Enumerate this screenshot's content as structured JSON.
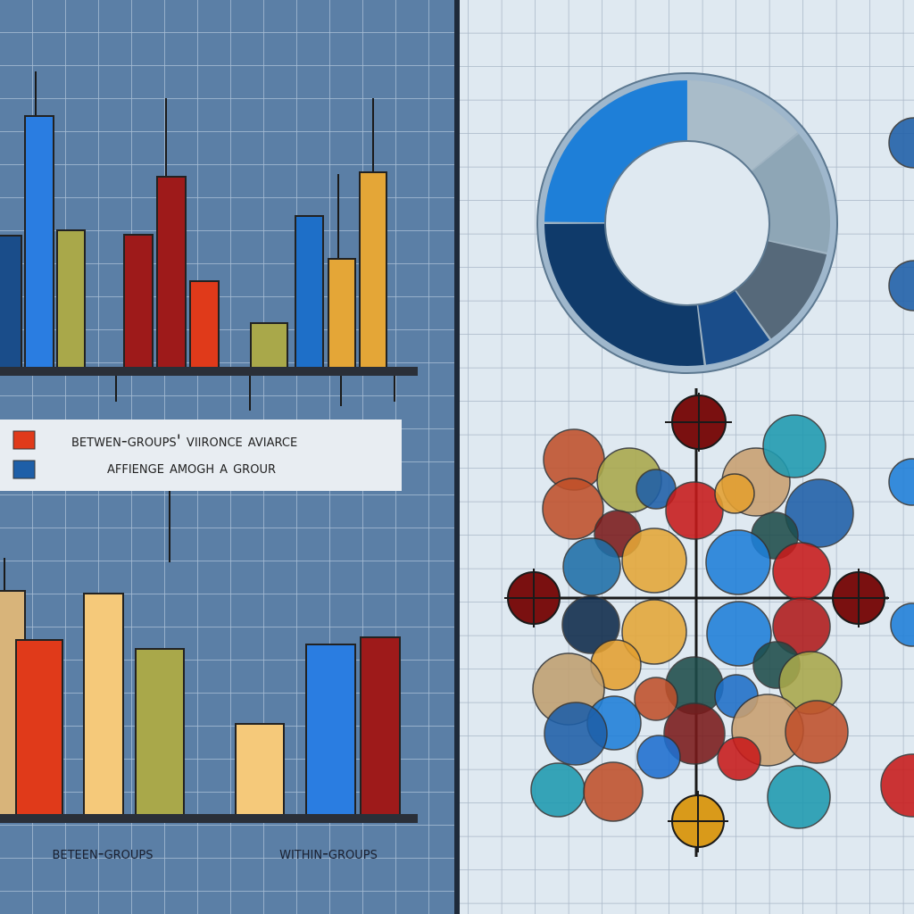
{
  "legend": {
    "items": [
      "betwen-groups' viironce aviarce",
      "affienge amogh a grour"
    ]
  },
  "axis_labels": [
    "beteen-groups",
    "within-groups"
  ]
}
